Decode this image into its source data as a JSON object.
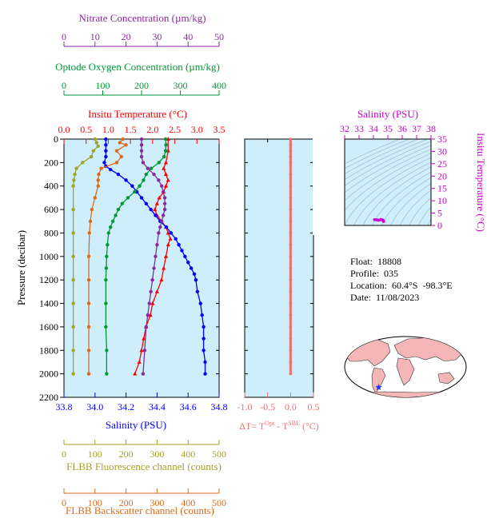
{
  "colors": {
    "panel_bg": "#cdeefa",
    "temperature": "#ff0000",
    "salinity": "#0000ff",
    "oxygen": "#009933",
    "nitrate": "#8b2a9e",
    "fluorescence": "#a3a32a",
    "backscatter": "#e06a1c",
    "delta_t": "#f07070",
    "ts_axis": "#cc00cc"
  },
  "info": {
    "float_label": "Float:",
    "float_value": "18808",
    "profile_label": "Profile:",
    "profile_value": "035",
    "location_label": "Location:",
    "location_lat": "60.4°S",
    "location_lon": "-98.3°E",
    "date_label": "Date:",
    "date_value": "11/08/2023"
  },
  "chart_data": [
    {
      "id": "main_profile",
      "type": "line",
      "ylabel": "Pressure (decibar)",
      "y_inverted": true,
      "ylim": [
        0,
        2200
      ],
      "yticks": [
        0,
        200,
        400,
        600,
        800,
        1000,
        1200,
        1400,
        1600,
        1800,
        2000,
        2200
      ],
      "grid": false,
      "axes": {
        "nitrate": {
          "label": "Nitrate Concentration (µm/kg)",
          "lim": [
            0,
            50
          ],
          "ticks": [
            0,
            10,
            20,
            30,
            40,
            50
          ]
        },
        "oxygen": {
          "label": "Optode Oxygen Concentration (µm/kg)",
          "lim": [
            0,
            400
          ],
          "ticks": [
            0,
            100,
            200,
            300,
            400
          ]
        },
        "temperature": {
          "label": "Insitu Temperature (°C)",
          "lim": [
            0,
            3.5
          ],
          "ticks": [
            "0.0",
            "0.5",
            "1.0",
            "1.5",
            "2.0",
            "2.5",
            "3.0",
            "3.5"
          ]
        },
        "salinity": {
          "label": "Salinity (PSU)",
          "lim": [
            33.8,
            34.8
          ],
          "ticks": [
            "33.8",
            "34.0",
            "34.2",
            "34.4",
            "34.6",
            "34.8"
          ]
        },
        "fluorescence": {
          "label": "FLBB Fluorescence channel (counts)",
          "lim": [
            0,
            500
          ],
          "ticks": [
            0,
            100,
            200,
            300,
            400,
            500
          ]
        },
        "backscatter": {
          "label": "FLBB Backscatter channel (counts)",
          "lim": [
            0,
            500
          ],
          "ticks": [
            0,
            100,
            200,
            300,
            400,
            500
          ]
        }
      },
      "series": [
        {
          "key": "temperature",
          "marker": "triangle",
          "points": [
            [
              2.35,
              0
            ],
            [
              2.35,
              100
            ],
            [
              2.3,
              200
            ],
            [
              2.25,
              250
            ],
            [
              2.3,
              300
            ],
            [
              2.35,
              350
            ],
            [
              2.3,
              400
            ],
            [
              2.25,
              450
            ],
            [
              2.15,
              500
            ],
            [
              2.1,
              550
            ],
            [
              2.05,
              600
            ],
            [
              2.1,
              650
            ],
            [
              2.2,
              700
            ],
            [
              2.3,
              750
            ],
            [
              2.35,
              800
            ],
            [
              2.4,
              850
            ],
            [
              2.35,
              900
            ],
            [
              2.3,
              1000
            ],
            [
              2.25,
              1100
            ],
            [
              2.2,
              1200
            ],
            [
              2.1,
              1300
            ],
            [
              2.0,
              1400
            ],
            [
              1.95,
              1500
            ],
            [
              1.85,
              1600
            ],
            [
              1.8,
              1700
            ],
            [
              1.75,
              1800
            ],
            [
              1.7,
              1900
            ],
            [
              1.6,
              2000
            ]
          ]
        },
        {
          "key": "salinity",
          "marker": "circle",
          "points": [
            [
              34.07,
              0
            ],
            [
              34.07,
              50
            ],
            [
              34.07,
              100
            ],
            [
              34.07,
              150
            ],
            [
              34.06,
              200
            ],
            [
              34.07,
              230
            ],
            [
              34.1,
              260
            ],
            [
              34.15,
              300
            ],
            [
              34.2,
              350
            ],
            [
              34.24,
              400
            ],
            [
              34.27,
              450
            ],
            [
              34.3,
              500
            ],
            [
              34.33,
              550
            ],
            [
              34.36,
              600
            ],
            [
              34.39,
              650
            ],
            [
              34.42,
              700
            ],
            [
              34.46,
              750
            ],
            [
              34.49,
              800
            ],
            [
              34.52,
              850
            ],
            [
              34.54,
              900
            ],
            [
              34.56,
              950
            ],
            [
              34.58,
              1000
            ],
            [
              34.6,
              1050
            ],
            [
              34.62,
              1100
            ],
            [
              34.64,
              1150
            ],
            [
              34.65,
              1200
            ],
            [
              34.66,
              1300
            ],
            [
              34.68,
              1400
            ],
            [
              34.69,
              1500
            ],
            [
              34.7,
              1600
            ],
            [
              34.7,
              1700
            ],
            [
              34.7,
              1800
            ],
            [
              34.71,
              1900
            ],
            [
              34.71,
              2000
            ]
          ]
        },
        {
          "key": "oxygen",
          "marker": "circle",
          "points": [
            [
              262,
              0
            ],
            [
              263,
              50
            ],
            [
              262,
              100
            ],
            [
              258,
              150
            ],
            [
              245,
              200
            ],
            [
              225,
              250
            ],
            [
              212,
              300
            ],
            [
              205,
              350
            ],
            [
              195,
              400
            ],
            [
              182,
              450
            ],
            [
              165,
              500
            ],
            [
              150,
              550
            ],
            [
              140,
              600
            ],
            [
              133,
              650
            ],
            [
              126,
              700
            ],
            [
              120,
              750
            ],
            [
              115,
              800
            ],
            [
              112,
              900
            ],
            [
              110,
              1000
            ],
            [
              109,
              1100
            ],
            [
              108,
              1200
            ],
            [
              108,
              1400
            ],
            [
              108,
              1600
            ],
            [
              110,
              1800
            ],
            [
              110,
              2000
            ]
          ]
        },
        {
          "key": "nitrate",
          "marker": "circle",
          "points": [
            [
              25,
              0
            ],
            [
              25,
              50
            ],
            [
              25,
              100
            ],
            [
              25,
              150
            ],
            [
              25.5,
              200
            ],
            [
              27,
              250
            ],
            [
              29,
              300
            ],
            [
              30.5,
              350
            ],
            [
              31.5,
              400
            ],
            [
              32,
              450
            ],
            [
              32.5,
              500
            ],
            [
              32.5,
              550
            ],
            [
              32.5,
              600
            ],
            [
              32,
              650
            ],
            [
              31.5,
              700
            ],
            [
              31,
              750
            ],
            [
              30.5,
              800
            ],
            [
              30,
              900
            ],
            [
              29.5,
              1000
            ],
            [
              29,
              1100
            ],
            [
              28.5,
              1200
            ],
            [
              28,
              1300
            ],
            [
              27.5,
              1400
            ],
            [
              27,
              1500
            ],
            [
              26.5,
              1600
            ],
            [
              26,
              1800
            ],
            [
              25.5,
              2000
            ]
          ]
        },
        {
          "key": "fluorescence",
          "marker": "circle",
          "points": [
            [
              100,
              0
            ],
            [
              105,
              30
            ],
            [
              110,
              60
            ],
            [
              95,
              100
            ],
            [
              88,
              150
            ],
            [
              60,
              200
            ],
            [
              40,
              250
            ],
            [
              35,
              300
            ],
            [
              32,
              350
            ],
            [
              30,
              400
            ],
            [
              30,
              600
            ],
            [
              30,
              800
            ],
            [
              30,
              1000
            ],
            [
              30,
              1200
            ],
            [
              30,
              1400
            ],
            [
              30,
              1600
            ],
            [
              30,
              1800
            ],
            [
              30,
              2000
            ]
          ]
        },
        {
          "key": "backscatter",
          "marker": "circle",
          "points": [
            [
              190,
              0
            ],
            [
              180,
              30
            ],
            [
              200,
              50
            ],
            [
              170,
              100
            ],
            [
              185,
              150
            ],
            [
              170,
              200
            ],
            [
              120,
              250
            ],
            [
              112,
              300
            ],
            [
              110,
              350
            ],
            [
              110,
              400
            ],
            [
              100,
              500
            ],
            [
              90,
              600
            ],
            [
              85,
              700
            ],
            [
              82,
              800
            ],
            [
              80,
              1000
            ],
            [
              80,
              1200
            ],
            [
              80,
              1400
            ],
            [
              80,
              1600
            ],
            [
              80,
              1800
            ],
            [
              80,
              2000
            ]
          ]
        }
      ]
    },
    {
      "id": "delta_t_panel",
      "type": "line",
      "xlabel": "ΔT= T",
      "xlabel_sup1": "Opt",
      "xlabel_mid": " - T",
      "xlabel_sup2": "SBE",
      "xlabel_unit": " (°C)",
      "xlim": [
        -1.0,
        0.5
      ],
      "xticks": [
        "-1.0",
        "-0.5",
        "0.0",
        "0.5"
      ],
      "ylim": [
        0,
        2200
      ],
      "y_inverted": true,
      "series": [
        {
          "key": "delta_t",
          "marker": "circle",
          "points": [
            [
              0.0,
              0
            ],
            [
              0.0,
              50
            ],
            [
              0.0,
              100
            ],
            [
              0.0,
              150
            ],
            [
              0.0,
              200
            ],
            [
              0.0,
              300
            ],
            [
              0.0,
              400
            ],
            [
              0.0,
              500
            ],
            [
              0.0,
              600
            ],
            [
              0.0,
              700
            ],
            [
              0.0,
              800
            ],
            [
              0.0,
              900
            ],
            [
              0.0,
              1000
            ],
            [
              0.0,
              1100
            ],
            [
              0.0,
              1200
            ],
            [
              0.0,
              1300
            ],
            [
              0.0,
              1400
            ],
            [
              0.0,
              1500
            ],
            [
              0.0,
              1600
            ],
            [
              0.0,
              1700
            ],
            [
              0.0,
              1800
            ],
            [
              0.0,
              1900
            ],
            [
              0.0,
              2000
            ]
          ]
        }
      ]
    },
    {
      "id": "ts_diagram",
      "type": "scatter",
      "title": "Salinity (PSU)",
      "ylabel": "Insitu Temperature (°C)",
      "xlim": [
        32,
        38
      ],
      "xticks": [
        32,
        33,
        34,
        35,
        36,
        37,
        38
      ],
      "ylim": [
        0,
        35
      ],
      "yticks": [
        0,
        5,
        10,
        15,
        20,
        25,
        30,
        35
      ],
      "density_contours": true,
      "points": [
        [
          34.07,
          2.35
        ],
        [
          34.15,
          2.3
        ],
        [
          34.24,
          2.25
        ],
        [
          34.33,
          2.1
        ],
        [
          34.42,
          2.2
        ],
        [
          34.52,
          2.4
        ],
        [
          34.58,
          2.3
        ],
        [
          34.64,
          2.2
        ],
        [
          34.68,
          2.0
        ],
        [
          34.7,
          1.8
        ],
        [
          34.71,
          1.6
        ]
      ]
    },
    {
      "id": "location_map",
      "type": "map",
      "marker": {
        "lat": -60.4,
        "lon": -98.3,
        "symbol": "star"
      }
    }
  ]
}
